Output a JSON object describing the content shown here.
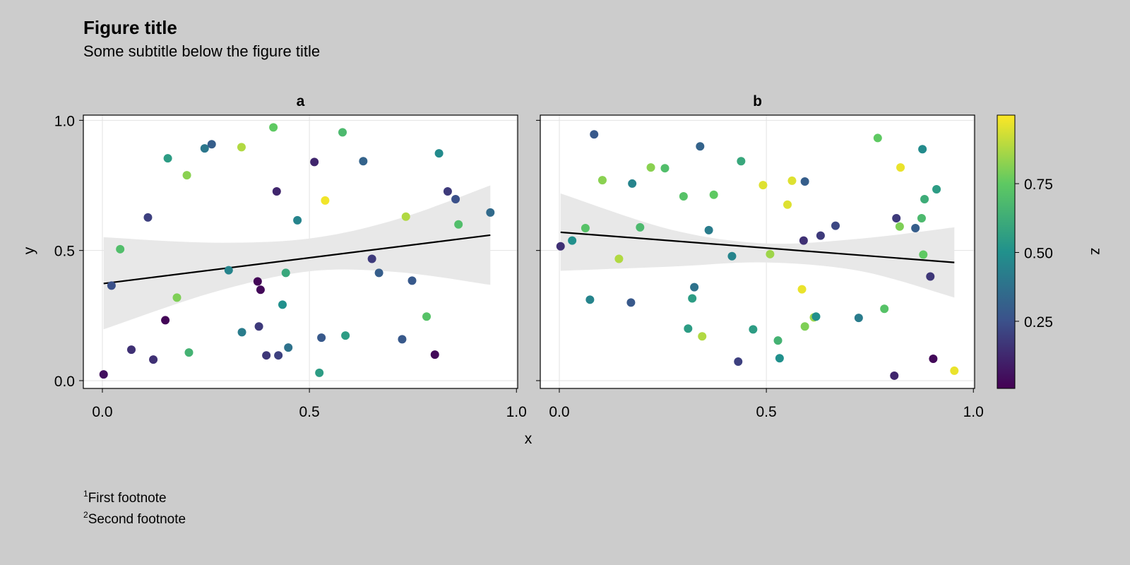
{
  "figure": {
    "title": "Figure title",
    "subtitle": "Some subtitle below the figure title",
    "footnotes": [
      {
        "mark": "1",
        "text": "First footnote"
      },
      {
        "mark": "2",
        "text": "Second footnote"
      }
    ]
  },
  "colors": {
    "background": "#cccccc",
    "panel": "#ffffff",
    "band": "#e8e8e8",
    "line": "#000000",
    "grid": "#e2e2e2"
  },
  "chart_data": [
    {
      "type": "scatter",
      "title": "a",
      "xlabel": "x",
      "ylabel": "y",
      "xlim": [
        -0.046,
        1.003
      ],
      "ylim": [
        -0.03,
        1.02
      ],
      "xticks": [
        0.0,
        0.5,
        1.0
      ],
      "xtick_labels": [
        "0.0",
        "0.5",
        "1.0"
      ],
      "yticks": [
        0.0,
        0.5,
        1.0
      ],
      "ytick_labels": [
        "0.0",
        "0.5",
        "1.0"
      ],
      "grid": true,
      "points": [
        [
          0.003,
          0.024,
          0.05
        ],
        [
          0.022,
          0.365,
          0.25
        ],
        [
          0.043,
          0.505,
          0.7
        ],
        [
          0.07,
          0.119,
          0.15
        ],
        [
          0.11,
          0.627,
          0.2
        ],
        [
          0.123,
          0.081,
          0.15
        ],
        [
          0.158,
          0.854,
          0.55
        ],
        [
          0.152,
          0.232,
          0.02
        ],
        [
          0.18,
          0.319,
          0.8
        ],
        [
          0.204,
          0.789,
          0.82
        ],
        [
          0.209,
          0.108,
          0.65
        ],
        [
          0.247,
          0.892,
          0.4
        ],
        [
          0.264,
          0.908,
          0.3
        ],
        [
          0.305,
          0.424,
          0.45
        ],
        [
          0.336,
          0.897,
          0.88
        ],
        [
          0.337,
          0.186,
          0.42
        ],
        [
          0.375,
          0.381,
          0.02
        ],
        [
          0.382,
          0.349,
          0.03
        ],
        [
          0.378,
          0.208,
          0.18
        ],
        [
          0.396,
          0.097,
          0.17
        ],
        [
          0.413,
          0.973,
          0.75
        ],
        [
          0.421,
          0.727,
          0.12
        ],
        [
          0.425,
          0.097,
          0.2
        ],
        [
          0.435,
          0.292,
          0.5
        ],
        [
          0.443,
          0.414,
          0.6
        ],
        [
          0.449,
          0.127,
          0.38
        ],
        [
          0.471,
          0.616,
          0.45
        ],
        [
          0.512,
          0.84,
          0.12
        ],
        [
          0.538,
          0.692,
          0.98
        ],
        [
          0.524,
          0.03,
          0.55
        ],
        [
          0.529,
          0.165,
          0.28
        ],
        [
          0.58,
          0.954,
          0.68
        ],
        [
          0.587,
          0.173,
          0.55
        ],
        [
          0.63,
          0.843,
          0.32
        ],
        [
          0.651,
          0.468,
          0.18
        ],
        [
          0.668,
          0.414,
          0.3
        ],
        [
          0.724,
          0.159,
          0.28
        ],
        [
          0.733,
          0.63,
          0.88
        ],
        [
          0.748,
          0.384,
          0.28
        ],
        [
          0.783,
          0.246,
          0.72
        ],
        [
          0.803,
          0.1,
          0.03
        ],
        [
          0.813,
          0.873,
          0.48
        ],
        [
          0.834,
          0.727,
          0.18
        ],
        [
          0.853,
          0.697,
          0.25
        ],
        [
          0.86,
          0.6,
          0.7
        ],
        [
          0.937,
          0.646,
          0.35
        ]
      ],
      "fit_line": {
        "x": [
          0.003,
          0.937
        ],
        "y": [
          0.373,
          0.559
        ]
      },
      "confidence_band": {
        "x": [
          0.003,
          0.265,
          0.5,
          0.712,
          0.937
        ],
        "upper": [
          0.551,
          0.53,
          0.546,
          0.62,
          0.75
        ],
        "lower": [
          0.197,
          0.338,
          0.42,
          0.417,
          0.368
        ]
      }
    },
    {
      "type": "scatter",
      "title": "b",
      "xlabel": "x",
      "ylabel": "",
      "xlim": [
        -0.046,
        1.003
      ],
      "ylim": [
        -0.03,
        1.02
      ],
      "xticks": [
        0.0,
        0.5,
        1.0
      ],
      "xtick_labels": [
        "0.0",
        "0.5",
        "1.0"
      ],
      "yticks": [
        0.0,
        0.5,
        1.0
      ],
      "ytick_labels": [],
      "grid": true,
      "points": [
        [
          0.003,
          0.516,
          0.15
        ],
        [
          0.031,
          0.538,
          0.5
        ],
        [
          0.063,
          0.586,
          0.72
        ],
        [
          0.074,
          0.311,
          0.45
        ],
        [
          0.084,
          0.946,
          0.28
        ],
        [
          0.104,
          0.77,
          0.82
        ],
        [
          0.144,
          0.468,
          0.88
        ],
        [
          0.173,
          0.3,
          0.28
        ],
        [
          0.176,
          0.757,
          0.45
        ],
        [
          0.195,
          0.589,
          0.68
        ],
        [
          0.221,
          0.819,
          0.82
        ],
        [
          0.255,
          0.816,
          0.7
        ],
        [
          0.3,
          0.708,
          0.72
        ],
        [
          0.311,
          0.2,
          0.55
        ],
        [
          0.321,
          0.316,
          0.55
        ],
        [
          0.326,
          0.359,
          0.38
        ],
        [
          0.34,
          0.9,
          0.32
        ],
        [
          0.345,
          0.17,
          0.88
        ],
        [
          0.361,
          0.578,
          0.42
        ],
        [
          0.373,
          0.714,
          0.75
        ],
        [
          0.417,
          0.478,
          0.45
        ],
        [
          0.432,
          0.073,
          0.2
        ],
        [
          0.439,
          0.843,
          0.6
        ],
        [
          0.468,
          0.197,
          0.55
        ],
        [
          0.492,
          0.751,
          0.95
        ],
        [
          0.509,
          0.486,
          0.85
        ],
        [
          0.528,
          0.154,
          0.65
        ],
        [
          0.532,
          0.086,
          0.5
        ],
        [
          0.551,
          0.676,
          0.95
        ],
        [
          0.562,
          0.768,
          0.95
        ],
        [
          0.59,
          0.538,
          0.15
        ],
        [
          0.586,
          0.351,
          0.97
        ],
        [
          0.593,
          0.765,
          0.3
        ],
        [
          0.593,
          0.208,
          0.8
        ],
        [
          0.615,
          0.243,
          0.85
        ],
        [
          0.62,
          0.246,
          0.5
        ],
        [
          0.631,
          0.557,
          0.18
        ],
        [
          0.667,
          0.595,
          0.22
        ],
        [
          0.723,
          0.241,
          0.42
        ],
        [
          0.769,
          0.932,
          0.75
        ],
        [
          0.785,
          0.276,
          0.72
        ],
        [
          0.809,
          0.019,
          0.12
        ],
        [
          0.814,
          0.624,
          0.18
        ],
        [
          0.822,
          0.592,
          0.8
        ],
        [
          0.824,
          0.819,
          0.97
        ],
        [
          0.903,
          0.084,
          0.03
        ],
        [
          0.86,
          0.586,
          0.3
        ],
        [
          0.875,
          0.624,
          0.68
        ],
        [
          0.877,
          0.889,
          0.48
        ],
        [
          0.879,
          0.484,
          0.75
        ],
        [
          0.882,
          0.697,
          0.62
        ],
        [
          0.896,
          0.4,
          0.17
        ],
        [
          0.911,
          0.735,
          0.55
        ],
        [
          0.954,
          0.038,
          0.97
        ]
      ],
      "fit_line": {
        "x": [
          0.003,
          0.954
        ],
        "y": [
          0.57,
          0.454
        ]
      },
      "confidence_band": {
        "x": [
          0.003,
          0.27,
          0.5,
          0.73,
          0.954
        ],
        "upper": [
          0.719,
          0.58,
          0.527,
          0.546,
          0.589
        ],
        "lower": [
          0.422,
          0.438,
          0.454,
          0.42,
          0.319
        ]
      }
    }
  ],
  "colorbar": {
    "label": "z",
    "range": [
      0.006,
      0.999
    ],
    "ticks": [
      0.25,
      0.5,
      0.75
    ],
    "tick_labels": [
      "0.25",
      "0.50",
      "0.75"
    ],
    "colormap": [
      "#440154",
      "#3b528b",
      "#21918c",
      "#5ec962",
      "#fde725"
    ]
  }
}
